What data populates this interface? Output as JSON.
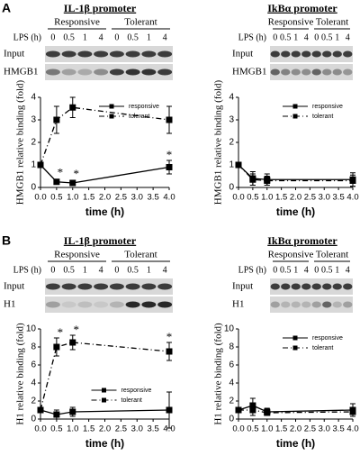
{
  "panel_labels": [
    "A",
    "B"
  ],
  "blots": [
    {
      "title": "IL-1β promoter",
      "groups": [
        "Responsive",
        "Tolerant"
      ],
      "lps_label": "LPS (h)",
      "lanes": [
        "0",
        "0.5",
        "1",
        "4",
        "0",
        "0.5",
        "1",
        "4"
      ],
      "rows": [
        "Input",
        "HMGB1"
      ]
    },
    {
      "title": "IkBα promoter",
      "groups": [
        "Responsive",
        "Tolerant"
      ],
      "lps_label": "LPS (h)",
      "lanes": [
        "0",
        "0.5",
        "1",
        "4",
        "0",
        "0.5",
        "1",
        "4"
      ],
      "rows": [
        "Input",
        "HMGB1"
      ]
    },
    {
      "title": "IL-1β promoter",
      "groups": [
        "Responsive",
        "Tolerant"
      ],
      "lps_label": "LPS (h)",
      "lanes": [
        "0",
        "0.5",
        "1",
        "4",
        "0",
        "0.5",
        "1",
        "4"
      ],
      "rows": [
        "Input",
        "H1"
      ]
    },
    {
      "title": "IkBα promoter",
      "groups": [
        "Responsive",
        "Tolerant"
      ],
      "lps_label": "LPS (h)",
      "lanes": [
        "0",
        "0.5",
        "1",
        "4",
        "0",
        "0.5",
        "1",
        "4"
      ],
      "rows": [
        "Input",
        "H1"
      ]
    }
  ],
  "chart_data": [
    {
      "type": "line",
      "x_label": "time (h)",
      "y_label": "HMGB1 relative binding (fold)",
      "x": [
        0,
        0.5,
        1,
        4
      ],
      "xlim": [
        0,
        4
      ],
      "xticks": [
        {
          "value": 0,
          "label": "0.0"
        },
        {
          "value": 0.5,
          "label": "0.5"
        },
        {
          "value": 1,
          "label": "1.0"
        },
        {
          "value": 1.5,
          "label": "1.5"
        },
        {
          "value": 2,
          "label": "2.0"
        },
        {
          "value": 2.5,
          "label": "2.5"
        },
        {
          "value": 3,
          "label": "3.0"
        },
        {
          "value": 3.5,
          "label": "3.5"
        },
        {
          "value": 4,
          "label": "4.0"
        }
      ],
      "ylim": [
        0,
        4
      ],
      "yticks": [
        0,
        1,
        2,
        3,
        4
      ],
      "legend": "upper right",
      "significance_label": "*",
      "series": [
        {
          "name": "responsive",
          "color": "#000000",
          "line_style": "solid",
          "values": [
            1.0,
            0.25,
            0.2,
            0.9
          ],
          "errors": [
            0.1,
            0.1,
            0.08,
            0.3
          ],
          "significant": [
            false,
            true,
            true,
            true
          ]
        },
        {
          "name": "tolerant",
          "color": "#000000",
          "line_style": "dashdot",
          "values": [
            1.0,
            3.0,
            3.55,
            3.0
          ],
          "errors": [
            0.1,
            0.6,
            0.45,
            0.6
          ],
          "significant": [
            false,
            false,
            false,
            false
          ]
        }
      ]
    },
    {
      "type": "line",
      "x_label": "time (h)",
      "y_label": "HMGB1 relative binding (fold)",
      "x": [
        0,
        0.5,
        1,
        4
      ],
      "xlim": [
        0,
        4
      ],
      "xticks": [
        {
          "value": 0,
          "label": "0.0"
        },
        {
          "value": 0.5,
          "label": "0.5"
        },
        {
          "value": 1,
          "label": "1.0"
        },
        {
          "value": 1.5,
          "label": "1.5"
        },
        {
          "value": 2,
          "label": "2.0"
        },
        {
          "value": 2.5,
          "label": "2.5"
        },
        {
          "value": 3,
          "label": "3.0"
        },
        {
          "value": 3.5,
          "label": "3.5"
        },
        {
          "value": 4,
          "label": "4.0"
        }
      ],
      "ylim": [
        0,
        4
      ],
      "yticks": [
        0,
        1,
        2,
        3,
        4
      ],
      "legend": "upper right",
      "significance_label": "*",
      "series": [
        {
          "name": "responsive",
          "color": "#000000",
          "line_style": "solid",
          "values": [
            1.0,
            0.4,
            0.35,
            0.35
          ],
          "errors": [
            0.1,
            0.3,
            0.25,
            0.3
          ],
          "significant": [
            false,
            false,
            false,
            false
          ]
        },
        {
          "name": "tolerant",
          "color": "#000000",
          "line_style": "dashdot",
          "values": [
            1.0,
            0.35,
            0.3,
            0.3
          ],
          "errors": [
            0.1,
            0.25,
            0.2,
            0.25
          ],
          "significant": [
            false,
            false,
            false,
            false
          ]
        }
      ]
    },
    {
      "type": "line",
      "x_label": "time (h)",
      "y_label": "H1 relative binding (fold)",
      "x": [
        0,
        0.5,
        1,
        4
      ],
      "xlim": [
        0,
        4
      ],
      "xticks": [
        {
          "value": 0,
          "label": "0.0"
        },
        {
          "value": 0.5,
          "label": "0.5"
        },
        {
          "value": 1,
          "label": "1.0"
        },
        {
          "value": 1.5,
          "label": "1.5"
        },
        {
          "value": 2,
          "label": "2.0"
        },
        {
          "value": 2.5,
          "label": "2.5"
        },
        {
          "value": 3,
          "label": "3.0"
        },
        {
          "value": 3.5,
          "label": "3.5"
        },
        {
          "value": 4,
          "label": "4.0"
        }
      ],
      "ylim": [
        0,
        10
      ],
      "yticks": [
        0,
        2,
        4,
        6,
        8,
        10
      ],
      "legend": "lower center",
      "significance_label": "*",
      "series": [
        {
          "name": "responsive",
          "color": "#000000",
          "line_style": "solid",
          "values": [
            1.0,
            0.5,
            0.8,
            1.0
          ],
          "errors": [
            0.1,
            0.5,
            0.5,
            2.0
          ],
          "significant": [
            false,
            false,
            false,
            false
          ]
        },
        {
          "name": "tolerant",
          "color": "#000000",
          "line_style": "dashdot",
          "values": [
            1.0,
            8.0,
            8.5,
            7.5
          ],
          "errors": [
            0.2,
            1.0,
            0.8,
            1.0
          ],
          "significant": [
            false,
            true,
            true,
            true
          ]
        }
      ]
    },
    {
      "type": "line",
      "x_label": "time (h)",
      "y_label": "H1 relative binding (fold)",
      "x": [
        0,
        0.5,
        1,
        4
      ],
      "xlim": [
        0,
        4
      ],
      "xticks": [
        {
          "value": 0,
          "label": "0.0"
        },
        {
          "value": 0.5,
          "label": "0.5"
        },
        {
          "value": 1,
          "label": "1.0"
        },
        {
          "value": 1.5,
          "label": "1.5"
        },
        {
          "value": 2,
          "label": "2.0"
        },
        {
          "value": 2.5,
          "label": "2.5"
        },
        {
          "value": 3,
          "label": "3.0"
        },
        {
          "value": 3.5,
          "label": "3.5"
        },
        {
          "value": 4,
          "label": "4.0"
        }
      ],
      "ylim": [
        0,
        10
      ],
      "yticks": [
        0,
        2,
        4,
        6,
        8,
        10
      ],
      "legend": "upper right",
      "significance_label": "*",
      "series": [
        {
          "name": "responsive",
          "color": "#000000",
          "line_style": "solid",
          "values": [
            1.0,
            1.5,
            0.8,
            1.0
          ],
          "errors": [
            0.2,
            0.8,
            0.4,
            0.7
          ],
          "significant": [
            false,
            false,
            false,
            false
          ]
        },
        {
          "name": "tolerant",
          "color": "#000000",
          "line_style": "dashdot",
          "values": [
            1.0,
            1.0,
            0.7,
            0.8
          ],
          "errors": [
            0.2,
            0.6,
            0.3,
            0.5
          ],
          "significant": [
            false,
            false,
            false,
            false
          ]
        }
      ]
    }
  ]
}
